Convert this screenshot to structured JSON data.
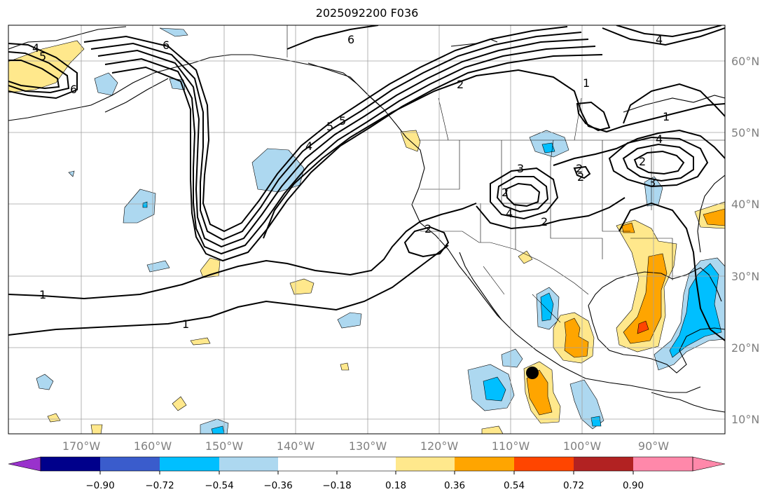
{
  "title": "2025092200 F036",
  "lat_labels": [
    "60°N",
    "50°N",
    "40°N",
    "30°N",
    "20°N",
    "10°N"
  ],
  "lon_labels": [
    "170°W",
    "160°W",
    "150°W",
    "140°W",
    "130°W",
    "120°W",
    "110°W",
    "100°W",
    "90°W"
  ],
  "colorbar": {
    "ticks": [
      "−0.90",
      "−0.72",
      "−0.54",
      "−0.36",
      "−0.18",
      "0.18",
      "0.36",
      "0.54",
      "0.72",
      "0.90"
    ],
    "colors": [
      "#9932cc",
      "#00008b",
      "#3a5ccc",
      "#00bfff",
      "#add8f0",
      "#ffffff",
      "#ffe88c",
      "#ffa500",
      "#ff4500",
      "#b22222",
      "#ff88aa"
    ]
  },
  "contour_labels": [
    "4",
    "5",
    "6",
    "6",
    "5",
    "2",
    "1",
    "1",
    "4",
    "3",
    "2",
    "4",
    "2",
    "2",
    "1",
    "1",
    "2",
    "4",
    "2",
    "3",
    "4",
    "5",
    "6",
    "2"
  ],
  "colors": {
    "light_blue": "#add8f0",
    "blue": "#00bfff",
    "yellow": "#ffe88c",
    "orange": "#ffa500",
    "red": "#ff4500",
    "grid": "#a0a0a0"
  },
  "marker": "storm-center-dot"
}
